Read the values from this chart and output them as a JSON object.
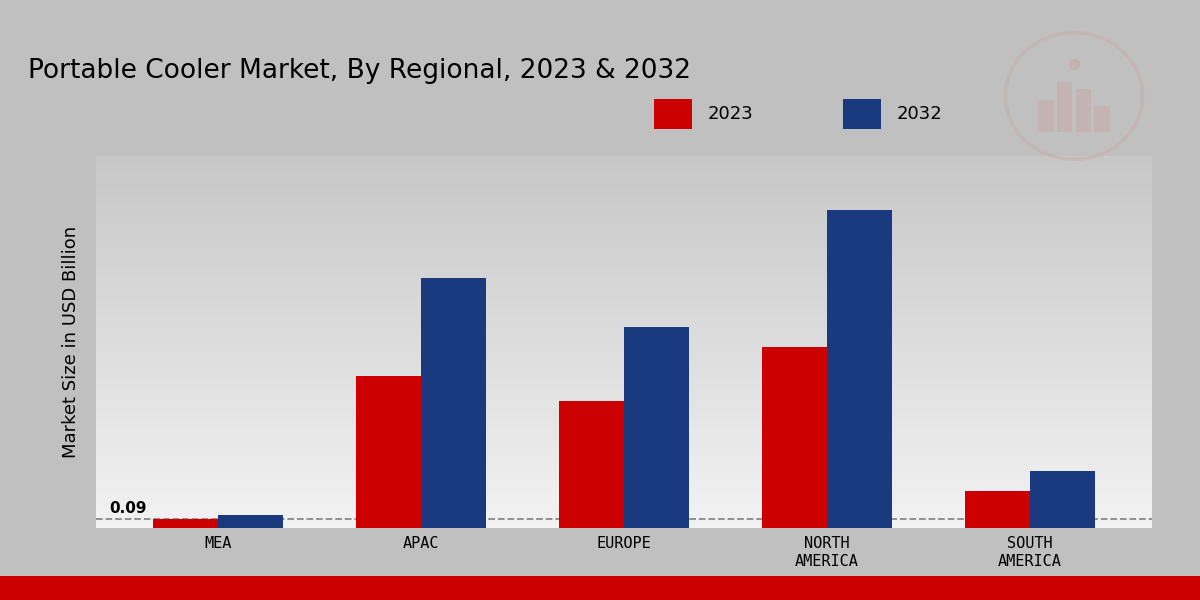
{
  "title": "Portable Cooler Market, By Regional, 2023 & 2032",
  "ylabel": "Market Size in USD Billion",
  "categories": [
    "MEA",
    "APAC",
    "EUROPE",
    "NORTH\nAMERICA",
    "SOUTH\nAMERICA"
  ],
  "values_2023": [
    0.09,
    1.55,
    1.3,
    1.85,
    0.38
  ],
  "values_2032": [
    0.13,
    2.55,
    2.05,
    3.25,
    0.58
  ],
  "color_2023": "#CC0000",
  "color_2032": "#1A3A80",
  "label_2023": "2023",
  "label_2032": "2032",
  "annotation_text": "0.09",
  "annotation_region": 0,
  "bar_width": 0.32,
  "ylim": [
    0,
    3.8
  ],
  "dashed_line_y": 0.09,
  "title_fontsize": 19,
  "axis_label_fontsize": 13,
  "tick_label_fontsize": 11,
  "legend_fontsize": 13,
  "bg_top_color": "#C8C8C8",
  "bg_bottom_color": "#F2F2F2",
  "fig_bg": "#C0C0C0"
}
